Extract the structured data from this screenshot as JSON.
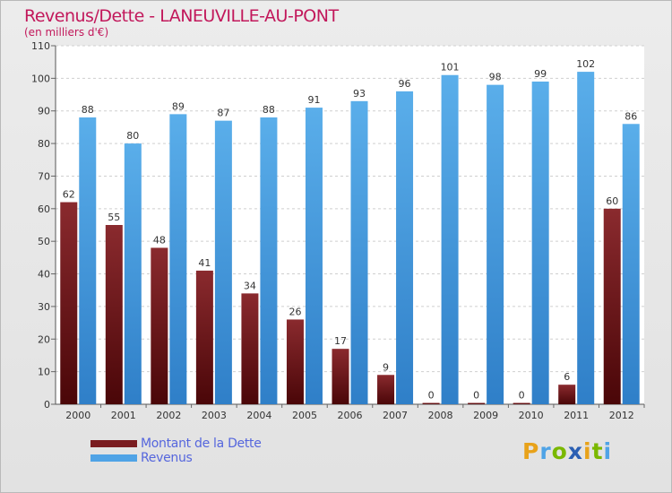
{
  "header": {
    "title": "Revenus/Dette - LANEUVILLE-AU-PONT",
    "subtitle": "(en milliers d'€)"
  },
  "chart_data": {
    "type": "bar",
    "title": "Revenus/Dette - LANEUVILLE-AU-PONT",
    "ylabel": "(en milliers d'€)",
    "xlabel": "",
    "categories": [
      "2000",
      "2001",
      "2002",
      "2003",
      "2004",
      "2005",
      "2006",
      "2007",
      "2008",
      "2009",
      "2010",
      "2011",
      "2012"
    ],
    "series": [
      {
        "name": "Montant de la Dette",
        "color": "#7a1c20",
        "values": [
          62,
          55,
          48,
          41,
          34,
          26,
          17,
          9,
          0,
          0,
          0,
          6,
          60
        ]
      },
      {
        "name": "Revenus",
        "color": "#4fa3e6",
        "values": [
          88,
          80,
          89,
          87,
          88,
          91,
          93,
          96,
          101,
          98,
          99,
          102,
          86
        ]
      }
    ],
    "ylim": [
      0,
      110
    ],
    "yticks": [
      0,
      10,
      20,
      30,
      40,
      50,
      60,
      70,
      80,
      90,
      100,
      110
    ],
    "grid": true,
    "legend": "bottom-left"
  },
  "legend": {
    "items": [
      {
        "label": "Montant de la Dette",
        "color": "#7a1c20"
      },
      {
        "label": "Revenus",
        "color": "#4fa3e6"
      }
    ]
  },
  "logo": {
    "letters": [
      "P",
      "r",
      "o",
      "x",
      "i",
      "t",
      "i"
    ],
    "colors": [
      "#e8a21a",
      "#4fa3e6",
      "#7ab800",
      "#2b5fb3",
      "#e8a21a",
      "#7ab800",
      "#4fa3e6"
    ]
  }
}
